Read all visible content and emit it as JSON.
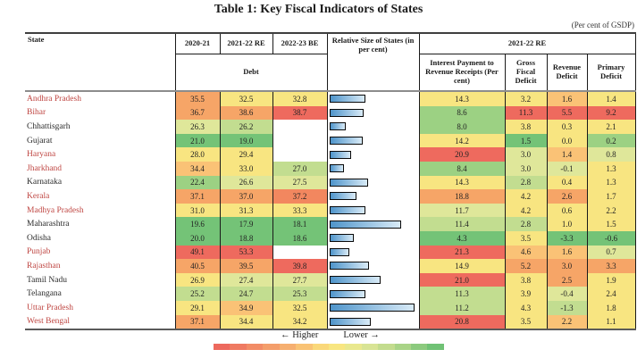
{
  "title": "Table 1: Key Fiscal Indicators of States",
  "unit_note": "(Per cent of GSDP)",
  "header": {
    "state": "State",
    "years": [
      "2020-21",
      "2021-22 RE",
      "2022-23 BE"
    ],
    "debt_label": "Debt",
    "relative_size": "Relative Size of States (in per cent)",
    "re_group": "2021-22 RE",
    "re_cols": [
      "Interest Payment to Revenue Receipts (Per cent)",
      "Gross Fiscal Deficit",
      "Revenue Deficit",
      "Primary Deficit"
    ]
  },
  "legend": {
    "higher": "← Higher",
    "lower": "Lower →",
    "colors": [
      "#ed695e",
      "#ef7a62",
      "#f28c66",
      "#f49e6b",
      "#f6af70",
      "#f9c375",
      "#fad87a",
      "#f8e681",
      "#e9e88e",
      "#d8e495",
      "#c3dc8e",
      "#a9d487",
      "#8cca7e",
      "#70c275"
    ]
  },
  "palette": {
    "r": "#ee6a5e",
    "ro": "#f2875f",
    "o": "#f6a567",
    "lo": "#fac276",
    "y": "#f8e581",
    "yg": "#dfe79a",
    "lg": "#c2dd90",
    "g2": "#9cd183",
    "g": "#74c377"
  },
  "state_colors": {
    "red": "#bf4642",
    "black": "#2b2b2b"
  },
  "bar_style": {
    "fill_left": "#4e94ca",
    "fill_right": "#d9ebf7",
    "border": "#0a0a0a"
  },
  "rows": [
    {
      "state": "Andhra Pradesh",
      "state_color": "red",
      "debt": [
        {
          "v": "35.5",
          "c": "o"
        },
        {
          "v": "32.5",
          "c": "y"
        },
        {
          "v": "32.8",
          "c": "y"
        }
      ],
      "size_pct": 43,
      "vals": [
        {
          "v": "14.3",
          "c": "y"
        },
        {
          "v": "3.2",
          "c": "y"
        },
        {
          "v": "1.6",
          "c": "lo"
        },
        {
          "v": "1.4",
          "c": "y"
        }
      ]
    },
    {
      "state": "Bihar",
      "state_color": "red",
      "debt": [
        {
          "v": "36.7",
          "c": "o"
        },
        {
          "v": "38.6",
          "c": "o"
        },
        {
          "v": "38.7",
          "c": "r"
        }
      ],
      "size_pct": 41,
      "vals": [
        {
          "v": "8.6",
          "c": "g2"
        },
        {
          "v": "11.3",
          "c": "r"
        },
        {
          "v": "5.5",
          "c": "r"
        },
        {
          "v": "9.2",
          "c": "r"
        }
      ]
    },
    {
      "state": "Chhattisgarh",
      "state_color": "black",
      "debt": [
        {
          "v": "26.3",
          "c": "yg"
        },
        {
          "v": "26.2",
          "c": "lg"
        },
        null
      ],
      "size_pct": 19,
      "vals": [
        {
          "v": "8.0",
          "c": "g2"
        },
        {
          "v": "3.8",
          "c": "y"
        },
        {
          "v": "0.3",
          "c": "y"
        },
        {
          "v": "2.1",
          "c": "y"
        }
      ]
    },
    {
      "state": "Gujarat",
      "state_color": "black",
      "debt": [
        {
          "v": "21.0",
          "c": "g"
        },
        {
          "v": "19.0",
          "c": "g"
        },
        null
      ],
      "size_pct": 39,
      "vals": [
        {
          "v": "14.2",
          "c": "y"
        },
        {
          "v": "1.5",
          "c": "g"
        },
        {
          "v": "0.0",
          "c": "y"
        },
        {
          "v": "0.2",
          "c": "g2"
        }
      ]
    },
    {
      "state": "Haryana",
      "state_color": "red",
      "debt": [
        {
          "v": "28.0",
          "c": "y"
        },
        {
          "v": "29.4",
          "c": "y"
        },
        null
      ],
      "size_pct": 26,
      "vals": [
        {
          "v": "20.9",
          "c": "r"
        },
        {
          "v": "3.0",
          "c": "yg"
        },
        {
          "v": "1.4",
          "c": "lo"
        },
        {
          "v": "0.8",
          "c": "yg"
        }
      ]
    },
    {
      "state": "Jharkhand",
      "state_color": "red",
      "debt": [
        {
          "v": "34.4",
          "c": "lo"
        },
        {
          "v": "33.0",
          "c": "y"
        },
        {
          "v": "27.0",
          "c": "lg"
        }
      ],
      "size_pct": 17,
      "vals": [
        {
          "v": "8.4",
          "c": "g2"
        },
        {
          "v": "3.0",
          "c": "yg"
        },
        {
          "v": "-0.1",
          "c": "yg"
        },
        {
          "v": "1.3",
          "c": "y"
        }
      ]
    },
    {
      "state": "Karnataka",
      "state_color": "black",
      "debt": [
        {
          "v": "22.4",
          "c": "g2"
        },
        {
          "v": "26.6",
          "c": "yg"
        },
        {
          "v": "27.5",
          "c": "yg"
        }
      ],
      "size_pct": 46,
      "vals": [
        {
          "v": "14.3",
          "c": "y"
        },
        {
          "v": "2.8",
          "c": "lg"
        },
        {
          "v": "0.4",
          "c": "y"
        },
        {
          "v": "1.3",
          "c": "y"
        }
      ]
    },
    {
      "state": "Kerala",
      "state_color": "red",
      "debt": [
        {
          "v": "37.1",
          "c": "o"
        },
        {
          "v": "37.0",
          "c": "o"
        },
        {
          "v": "37.2",
          "c": "ro"
        }
      ],
      "size_pct": 32,
      "vals": [
        {
          "v": "18.8",
          "c": "o"
        },
        {
          "v": "4.2",
          "c": "y"
        },
        {
          "v": "2.6",
          "c": "o"
        },
        {
          "v": "1.7",
          "c": "y"
        }
      ]
    },
    {
      "state": "Madhya Pradesh",
      "state_color": "red",
      "debt": [
        {
          "v": "31.0",
          "c": "y"
        },
        {
          "v": "31.3",
          "c": "y"
        },
        {
          "v": "33.3",
          "c": "y"
        }
      ],
      "size_pct": 43,
      "vals": [
        {
          "v": "11.7",
          "c": "yg"
        },
        {
          "v": "4.2",
          "c": "y"
        },
        {
          "v": "0.6",
          "c": "y"
        },
        {
          "v": "2.2",
          "c": "y"
        }
      ]
    },
    {
      "state": "Maharashtra",
      "state_color": "black",
      "debt": [
        {
          "v": "19.6",
          "c": "g"
        },
        {
          "v": "17.9",
          "c": "g"
        },
        {
          "v": "18.1",
          "c": "g"
        }
      ],
      "size_pct": 85,
      "vals": [
        {
          "v": "11.4",
          "c": "lg"
        },
        {
          "v": "2.8",
          "c": "lg"
        },
        {
          "v": "1.0",
          "c": "y"
        },
        {
          "v": "1.5",
          "c": "y"
        }
      ]
    },
    {
      "state": "Odisha",
      "state_color": "black",
      "debt": [
        {
          "v": "20.0",
          "c": "g"
        },
        {
          "v": "18.8",
          "c": "g"
        },
        {
          "v": "18.6",
          "c": "g"
        }
      ],
      "size_pct": 29,
      "vals": [
        {
          "v": "4.3",
          "c": "g"
        },
        {
          "v": "3.5",
          "c": "y"
        },
        {
          "v": "-3.3",
          "c": "g"
        },
        {
          "v": "-0.6",
          "c": "g"
        }
      ]
    },
    {
      "state": "Punjab",
      "state_color": "red",
      "debt": [
        {
          "v": "49.1",
          "c": "r"
        },
        {
          "v": "53.3",
          "c": "r"
        },
        null
      ],
      "size_pct": 24,
      "vals": [
        {
          "v": "21.3",
          "c": "r"
        },
        {
          "v": "4.6",
          "c": "lo"
        },
        {
          "v": "1.6",
          "c": "lo"
        },
        {
          "v": "0.7",
          "c": "yg"
        }
      ]
    },
    {
      "state": "Rajasthan",
      "state_color": "red",
      "debt": [
        {
          "v": "40.5",
          "c": "o"
        },
        {
          "v": "39.5",
          "c": "o"
        },
        {
          "v": "39.8",
          "c": "r"
        }
      ],
      "size_pct": 47,
      "vals": [
        {
          "v": "14.9",
          "c": "y"
        },
        {
          "v": "5.2",
          "c": "o"
        },
        {
          "v": "3.0",
          "c": "o"
        },
        {
          "v": "3.3",
          "c": "o"
        }
      ]
    },
    {
      "state": "Tamil Nadu",
      "state_color": "black",
      "debt": [
        {
          "v": "26.9",
          "c": "y"
        },
        {
          "v": "27.4",
          "c": "yg"
        },
        {
          "v": "27.7",
          "c": "yg"
        }
      ],
      "size_pct": 61,
      "vals": [
        {
          "v": "21.0",
          "c": "r"
        },
        {
          "v": "3.8",
          "c": "y"
        },
        {
          "v": "2.5",
          "c": "o"
        },
        {
          "v": "1.9",
          "c": "y"
        }
      ]
    },
    {
      "state": "Telangana",
      "state_color": "black",
      "debt": [
        {
          "v": "25.2",
          "c": "lg"
        },
        {
          "v": "24.7",
          "c": "lg"
        },
        {
          "v": "25.3",
          "c": "lg"
        }
      ],
      "size_pct": 43,
      "vals": [
        {
          "v": "11.3",
          "c": "lg"
        },
        {
          "v": "3.9",
          "c": "y"
        },
        {
          "v": "-0.4",
          "c": "yg"
        },
        {
          "v": "2.4",
          "c": "y"
        }
      ]
    },
    {
      "state": "Uttar Pradesh",
      "state_color": "red",
      "debt": [
        {
          "v": "29.1",
          "c": "y"
        },
        {
          "v": "34.9",
          "c": "lo"
        },
        {
          "v": "32.5",
          "c": "y"
        }
      ],
      "size_pct": 100,
      "vals": [
        {
          "v": "11.2",
          "c": "lg"
        },
        {
          "v": "4.3",
          "c": "y"
        },
        {
          "v": "-1.3",
          "c": "lg"
        },
        {
          "v": "1.8",
          "c": "y"
        }
      ]
    },
    {
      "state": "West Bengal",
      "state_color": "red",
      "debt": [
        {
          "v": "37.1",
          "c": "o"
        },
        {
          "v": "34.4",
          "c": "y"
        },
        {
          "v": "34.2",
          "c": "y"
        }
      ],
      "size_pct": 49,
      "vals": [
        {
          "v": "20.8",
          "c": "r"
        },
        {
          "v": "3.5",
          "c": "y"
        },
        {
          "v": "2.2",
          "c": "lo"
        },
        {
          "v": "1.1",
          "c": "y"
        }
      ]
    }
  ],
  "chart_data": [
    {
      "type": "table",
      "title": "Table 1: Key Fiscal Indicators of States",
      "unit": "Per cent of GSDP",
      "columns": [
        "State",
        "Debt 2020-21",
        "Debt 2021-22 RE",
        "Debt 2022-23 BE",
        "Interest Payment to Revenue Receipts (Per cent) 2021-22 RE",
        "Gross Fiscal Deficit 2021-22 RE",
        "Revenue Deficit 2021-22 RE",
        "Primary Deficit 2021-22 RE"
      ],
      "rows": [
        [
          "Andhra Pradesh",
          35.5,
          32.5,
          32.8,
          14.3,
          3.2,
          1.6,
          1.4
        ],
        [
          "Bihar",
          36.7,
          38.6,
          38.7,
          8.6,
          11.3,
          5.5,
          9.2
        ],
        [
          "Chhattisgarh",
          26.3,
          26.2,
          null,
          8.0,
          3.8,
          0.3,
          2.1
        ],
        [
          "Gujarat",
          21.0,
          19.0,
          null,
          14.2,
          1.5,
          0.0,
          0.2
        ],
        [
          "Haryana",
          28.0,
          29.4,
          null,
          20.9,
          3.0,
          1.4,
          0.8
        ],
        [
          "Jharkhand",
          34.4,
          33.0,
          27.0,
          8.4,
          3.0,
          -0.1,
          1.3
        ],
        [
          "Karnataka",
          22.4,
          26.6,
          27.5,
          14.3,
          2.8,
          0.4,
          1.3
        ],
        [
          "Kerala",
          37.1,
          37.0,
          37.2,
          18.8,
          4.2,
          2.6,
          1.7
        ],
        [
          "Madhya Pradesh",
          31.0,
          31.3,
          33.3,
          11.7,
          4.2,
          0.6,
          2.2
        ],
        [
          "Maharashtra",
          19.6,
          17.9,
          18.1,
          11.4,
          2.8,
          1.0,
          1.5
        ],
        [
          "Odisha",
          20.0,
          18.8,
          18.6,
          4.3,
          3.5,
          -3.3,
          -0.6
        ],
        [
          "Punjab",
          49.1,
          53.3,
          null,
          21.3,
          4.6,
          1.6,
          0.7
        ],
        [
          "Rajasthan",
          40.5,
          39.5,
          39.8,
          14.9,
          5.2,
          3.0,
          3.3
        ],
        [
          "Tamil Nadu",
          26.9,
          27.4,
          27.7,
          21.0,
          3.8,
          2.5,
          1.9
        ],
        [
          "Telangana",
          25.2,
          24.7,
          25.3,
          11.3,
          3.9,
          -0.4,
          2.4
        ],
        [
          "Uttar Pradesh",
          29.1,
          34.9,
          32.5,
          11.2,
          4.3,
          -1.3,
          1.8
        ],
        [
          "West Bengal",
          37.1,
          34.4,
          34.2,
          20.8,
          3.5,
          2.2,
          1.1
        ]
      ]
    },
    {
      "type": "bar",
      "title": "Relative Size of States (in per cent)",
      "orientation": "horizontal",
      "note": "bars unlabeled in image; values are bar lengths as per cent of the longest bar (Uttar Pradesh)",
      "categories": [
        "Andhra Pradesh",
        "Bihar",
        "Chhattisgarh",
        "Gujarat",
        "Haryana",
        "Jharkhand",
        "Karnataka",
        "Kerala",
        "Madhya Pradesh",
        "Maharashtra",
        "Odisha",
        "Punjab",
        "Rajasthan",
        "Tamil Nadu",
        "Telangana",
        "Uttar Pradesh",
        "West Bengal"
      ],
      "values": [
        43,
        41,
        19,
        39,
        26,
        17,
        46,
        32,
        43,
        85,
        29,
        24,
        47,
        61,
        43,
        100,
        49
      ]
    }
  ]
}
